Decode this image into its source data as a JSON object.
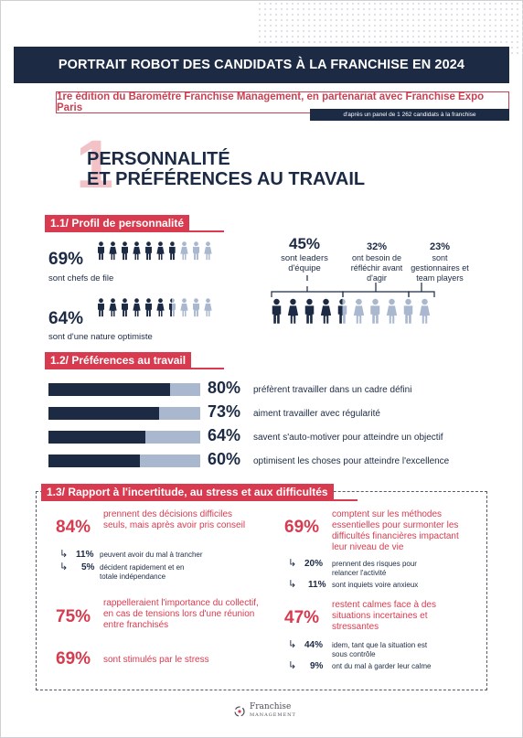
{
  "header": {
    "title": "PORTRAIT ROBOT DES CANDIDATS À LA FRANCHISE EN 2024",
    "subtitle": "1re édition du Baromètre Franchise Management, en partenariat avec Franchise Expo Paris",
    "source": "d'après un panel de 1 262 candidats à la franchise"
  },
  "section1": {
    "number": "1",
    "title_line1": "PERSONNALITÉ",
    "title_line2": "ET PRÉFÉRENCES AU TRAVAIL"
  },
  "profile": {
    "heading": "1.1/ Profil de personnalité",
    "stats": [
      {
        "pct": "69%",
        "label": "sont chefs de file",
        "filled": 6.9
      },
      {
        "pct": "64%",
        "label": "sont d'une nature optimiste",
        "filled": 6.4
      }
    ],
    "groups": [
      {
        "pct": "45%",
        "label": "sont leaders d'équipe"
      },
      {
        "pct": "32%",
        "label": "ont besoin de réfléchir avant d'agir"
      },
      {
        "pct": "23%",
        "label": "sont gestionnaires et team players"
      }
    ]
  },
  "preferences": {
    "heading": "1.2/ Préférences au travail",
    "bars": [
      {
        "pct": "80%",
        "value": 80,
        "label": "préfèrent travailler dans un cadre défini"
      },
      {
        "pct": "73%",
        "value": 73,
        "label": "aiment travailler avec régularité"
      },
      {
        "pct": "64%",
        "value": 64,
        "label": "savent s'auto-motiver pour atteindre un objectif"
      },
      {
        "pct": "60%",
        "value": 60,
        "label": "optimisent les choses pour atteindre l'excellence"
      }
    ]
  },
  "uncertainty": {
    "heading": "1.3/ Rapport à l'incertitude, au stress et aux difficultés",
    "left": [
      {
        "pct": "84%",
        "label": "prennent des décisions difficiles seuls, mais après avoir pris conseil",
        "subs": [
          {
            "pct": "11%",
            "label": "peuvent avoir du mal à trancher"
          },
          {
            "pct": "5%",
            "label": "décident rapidement et en totale indépendance"
          }
        ]
      },
      {
        "pct": "75%",
        "label": "rappelleraient l'importance du collectif, en cas de tensions lors d'une réunion entre franchisés",
        "subs": []
      },
      {
        "pct": "69%",
        "label": "sont stimulés par le stress",
        "subs": []
      }
    ],
    "right": [
      {
        "pct": "69%",
        "label": "comptent sur les méthodes essentielles pour surmonter les difficultés financières impactant leur niveau de vie",
        "subs": [
          {
            "pct": "20%",
            "label": "prennent des risques pour relancer l'activité"
          },
          {
            "pct": "11%",
            "label": "sont inquiets voire anxieux"
          }
        ]
      },
      {
        "pct": "47%",
        "label": "restent calmes face à des situations incertaines et stressantes",
        "subs": [
          {
            "pct": "44%",
            "label": "idem, tant que la situation est sous contrôle"
          },
          {
            "pct": "9%",
            "label": "ont du mal à garder leur calme"
          }
        ]
      }
    ]
  },
  "footer": {
    "logo_line1": "Franchise",
    "logo_line2": "MANAGEMENT"
  },
  "colors": {
    "navy": "#1c2a44",
    "light_blue": "#a9b8cf",
    "red": "#d83b4f",
    "pink": "#f2c2c7"
  }
}
